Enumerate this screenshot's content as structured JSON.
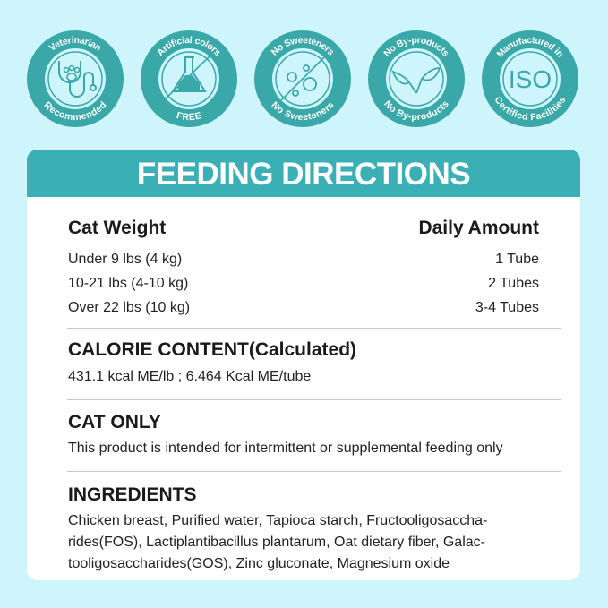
{
  "colors": {
    "background": "#cdf5fb",
    "accent": "#3aafb5",
    "badge": "#3aa8a8"
  },
  "badges": [
    {
      "top": "Veterinarian",
      "bottom": "Recommended",
      "icon": "stethoscope-paw-icon"
    },
    {
      "top": "Artificial colors",
      "bottom": "FREE",
      "icon": "flask-crossed-icon"
    },
    {
      "top": "No Sweeteners",
      "bottom": "No Sweeteners",
      "icon": "sweetener-crossed-icon"
    },
    {
      "top": "No By-products",
      "bottom": "No By-products",
      "icon": "leaves-icon"
    },
    {
      "top": "Manufactured in",
      "bottom": "Certified Facilities",
      "icon": "iso-icon",
      "icon_text": "ISO"
    }
  ],
  "card": {
    "title": "FEEDING DIRECTIONS",
    "table": {
      "headers": [
        "Cat Weight",
        "Daily Amount"
      ],
      "rows": [
        [
          "Under 9 lbs (4 kg)",
          "1 Tube"
        ],
        [
          "10-21 lbs (4-10 kg)",
          "2 Tubes"
        ],
        [
          "Over 22 lbs (10 kg)",
          "3-4 Tubes"
        ]
      ]
    },
    "calorie": {
      "title": "CALORIE CONTENT(Calculated)",
      "text": "431.1 kcal ME/lb ; 6.464 Kcal ME/tube"
    },
    "cat_only": {
      "title": "CAT ONLY",
      "text": "This product is intended for intermittent or supplemental feeding only"
    },
    "ingredients": {
      "title": "INGREDIENTS",
      "lines": [
        "Chicken breast, Purified water, Tapioca starch, Fructooligosaccha-",
        "rides(FOS), Lactiplantibacillus plantarum, Oat dietary fiber, Galac-",
        "tooligosaccharides(GOS), Zinc gluconate, Magnesium oxide"
      ]
    }
  }
}
